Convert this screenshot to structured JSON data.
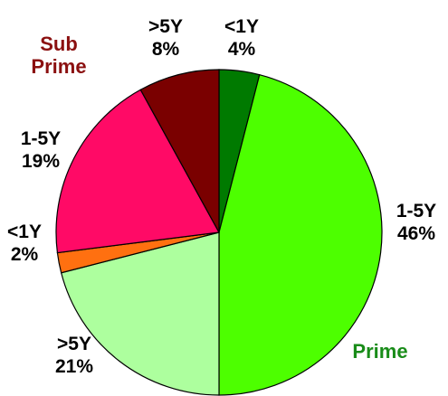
{
  "chart_data": {
    "type": "pie",
    "start_angle_deg": 0,
    "direction": "clockwise",
    "slices": [
      {
        "label": "<1Y",
        "value": 4,
        "pct_label": "4%",
        "color": "#007a00"
      },
      {
        "label": "1-5Y",
        "value": 46,
        "pct_label": "46%",
        "color": "#4dff00"
      },
      {
        "label": ">5Y",
        "value": 21,
        "pct_label": "21%",
        "color": "#adff9e"
      },
      {
        "label": "<1Y",
        "value": 2,
        "pct_label": "2%",
        "color": "#ff7010"
      },
      {
        "label": "1-5Y",
        "value": 19,
        "pct_label": "19%",
        "color": "#ff0a66"
      },
      {
        "label": ">5Y",
        "value": 8,
        "pct_label": "8%",
        "color": "#7a0000"
      }
    ],
    "groups": [
      {
        "name": "Prime",
        "color": "#198c19"
      },
      {
        "name": "Sub\nPrime",
        "color": "#8b1010"
      }
    ]
  }
}
